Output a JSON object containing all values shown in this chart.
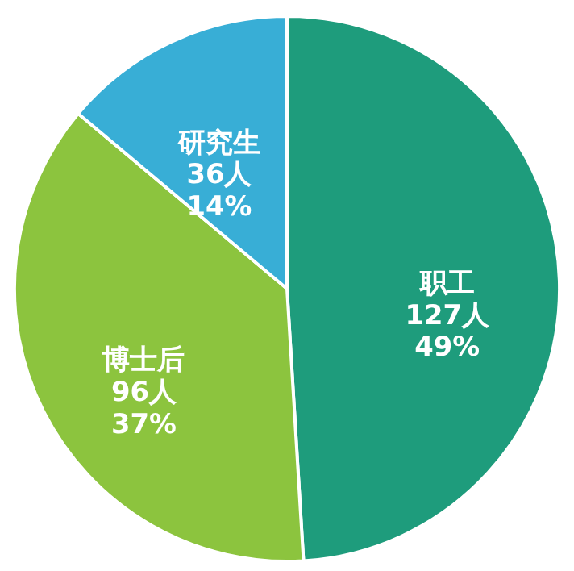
{
  "chart_data": {
    "type": "pie",
    "categories": [
      "职工",
      "博士后",
      "研究生"
    ],
    "values": [
      127,
      96,
      36
    ],
    "value_labels": [
      "127人 49%",
      "96人 37%",
      "36人 14%"
    ],
    "colors": [
      "#1e9c7c",
      "#8cc43e",
      "#38aed6"
    ],
    "legend": false
  }
}
